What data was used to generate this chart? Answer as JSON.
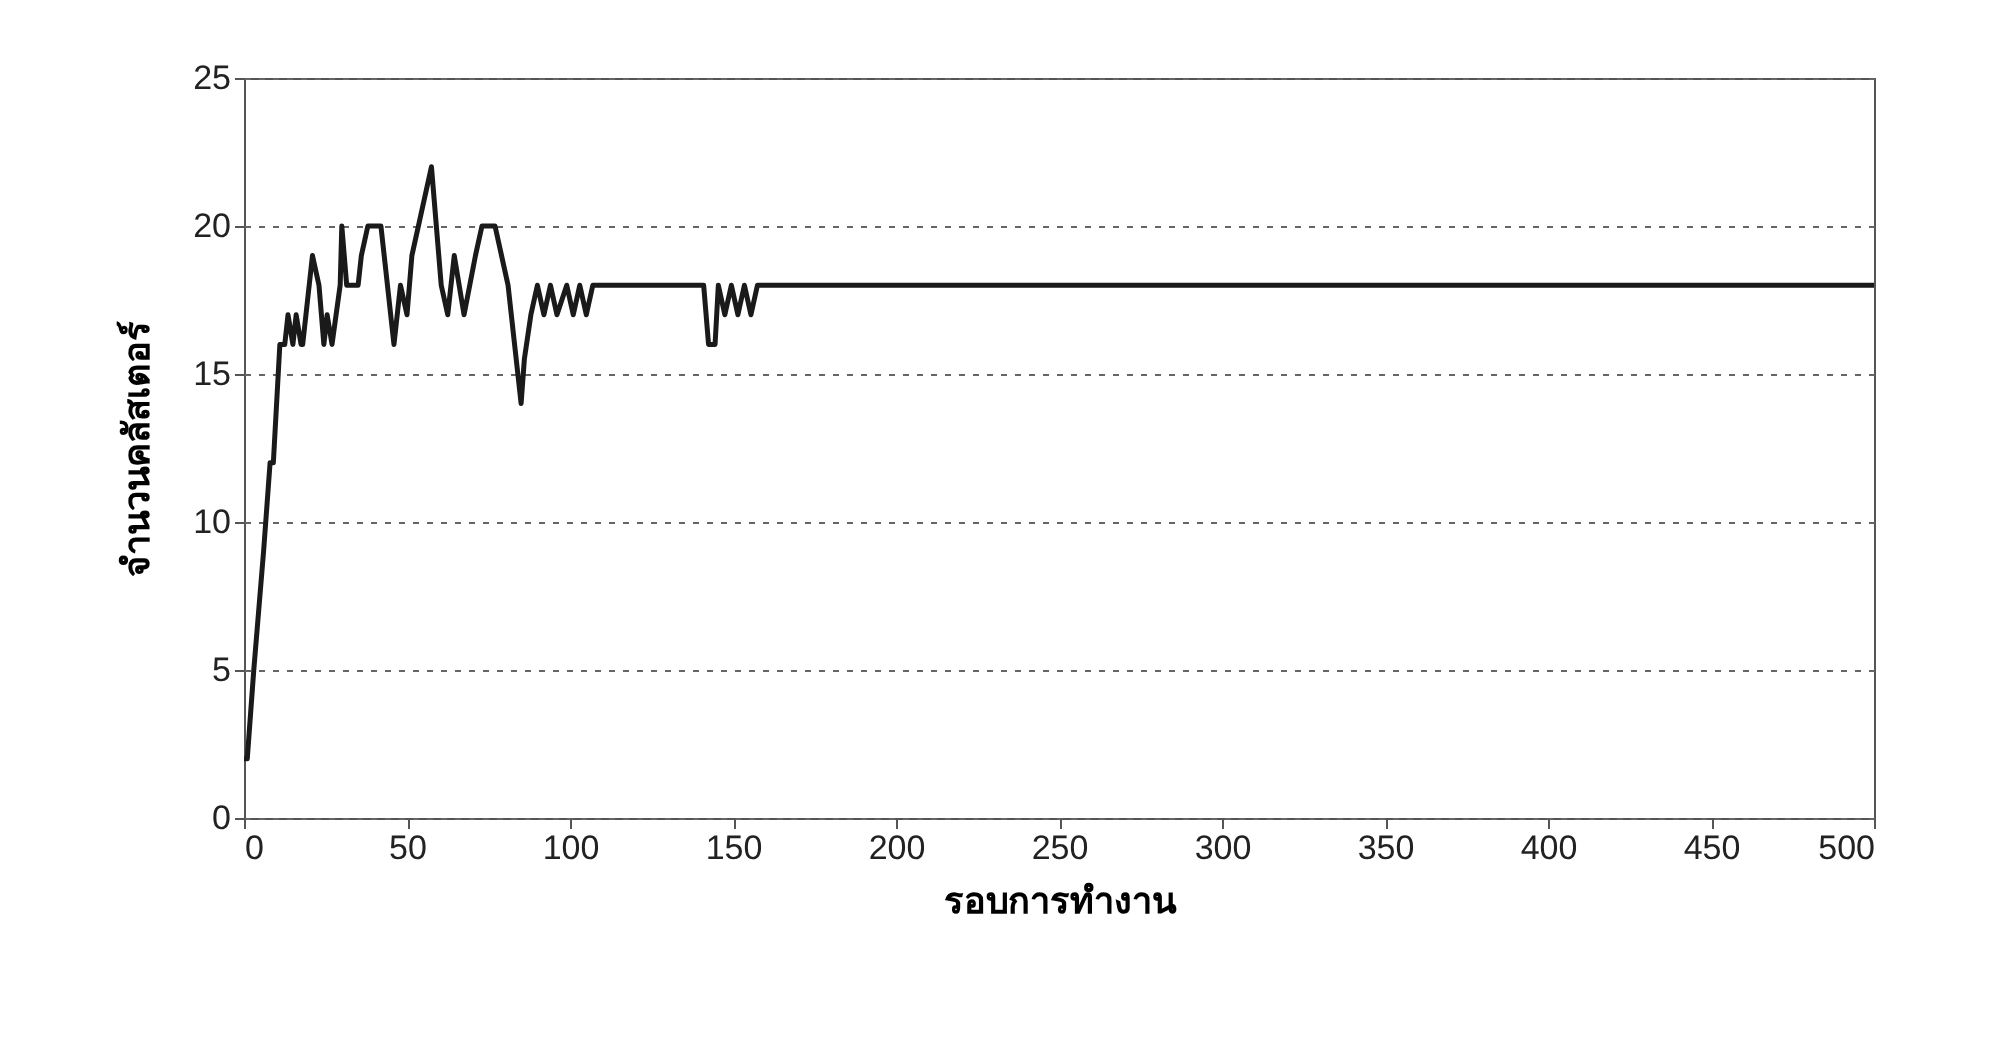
{
  "chart_data": {
    "type": "line",
    "xlabel": "รอบการทำงาน",
    "ylabel": "จำนวนคลัสเตอร์",
    "x": [
      0,
      1,
      3,
      6,
      8,
      9,
      11,
      12.5,
      13.5,
      15,
      16,
      17.5,
      18,
      21,
      23,
      24.5,
      25.5,
      27,
      29.5,
      30,
      31.5,
      35,
      36,
      38,
      42,
      43,
      46,
      48,
      50,
      51.5,
      57.5,
      60.5,
      62.5,
      64.5,
      67.5,
      71,
      73,
      77,
      79,
      81,
      83,
      85,
      86,
      88,
      90,
      92,
      94,
      96,
      99,
      101,
      103,
      105,
      107,
      141,
      142.5,
      144.5,
      145.5,
      147.5,
      149.5,
      151.5,
      153.5,
      155.5,
      157.5,
      500
    ],
    "series": [
      {
        "color": "#1a1a1a",
        "values": [
          2,
          2,
          5,
          9,
          12,
          12,
          16,
          16,
          17,
          16,
          17,
          16,
          16,
          19,
          18,
          16,
          17,
          16,
          18,
          20,
          18,
          18,
          19,
          20,
          20,
          19,
          16,
          18,
          17,
          19,
          22,
          18,
          17,
          19,
          17,
          19,
          20,
          20,
          19,
          18,
          16,
          14,
          15.5,
          17,
          18,
          17,
          18,
          17,
          18,
          17,
          18,
          17,
          18,
          18,
          16,
          16,
          18,
          17,
          18,
          17,
          18,
          17,
          18,
          18
        ]
      }
    ],
    "xlim": [
      0,
      500
    ],
    "xticks": [
      0,
      50,
      100,
      150,
      200,
      250,
      300,
      350,
      400,
      450,
      500
    ],
    "ylim": [
      0,
      25
    ],
    "yticks": [
      0,
      5,
      10,
      15,
      20,
      25
    ],
    "grid": "y",
    "line_style": "solid",
    "marker": "none",
    "legend": false
  }
}
